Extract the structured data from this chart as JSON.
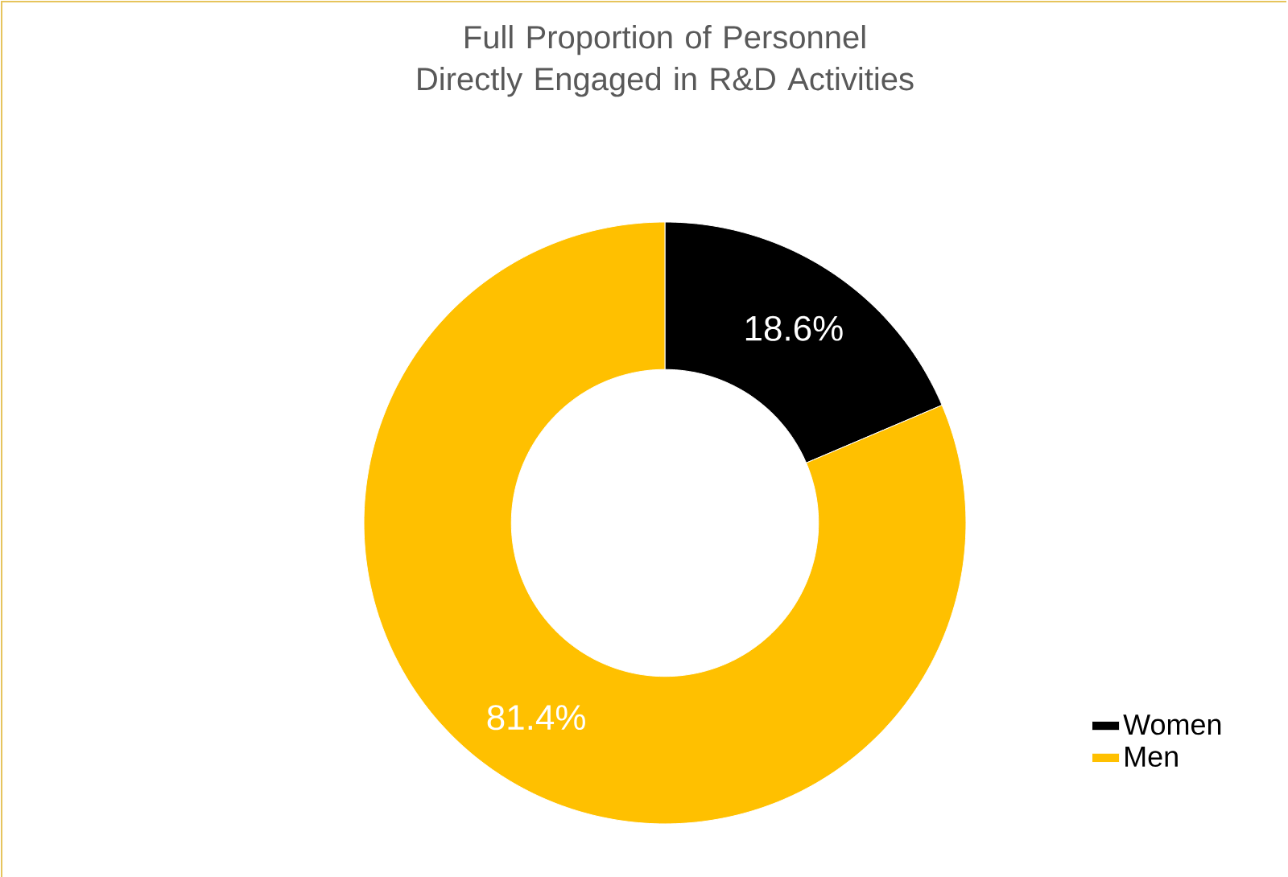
{
  "chart_data": {
    "type": "donut",
    "title": "Full Proportion of Personnel Directly Engaged in R&D Activities",
    "categories": [
      "Women",
      "Men"
    ],
    "values": [
      18.6,
      81.4
    ],
    "colors": [
      "#000000",
      "#ffc000"
    ],
    "value_labels": [
      "18.6%",
      "81.4%"
    ],
    "legend": "bottom right"
  }
}
